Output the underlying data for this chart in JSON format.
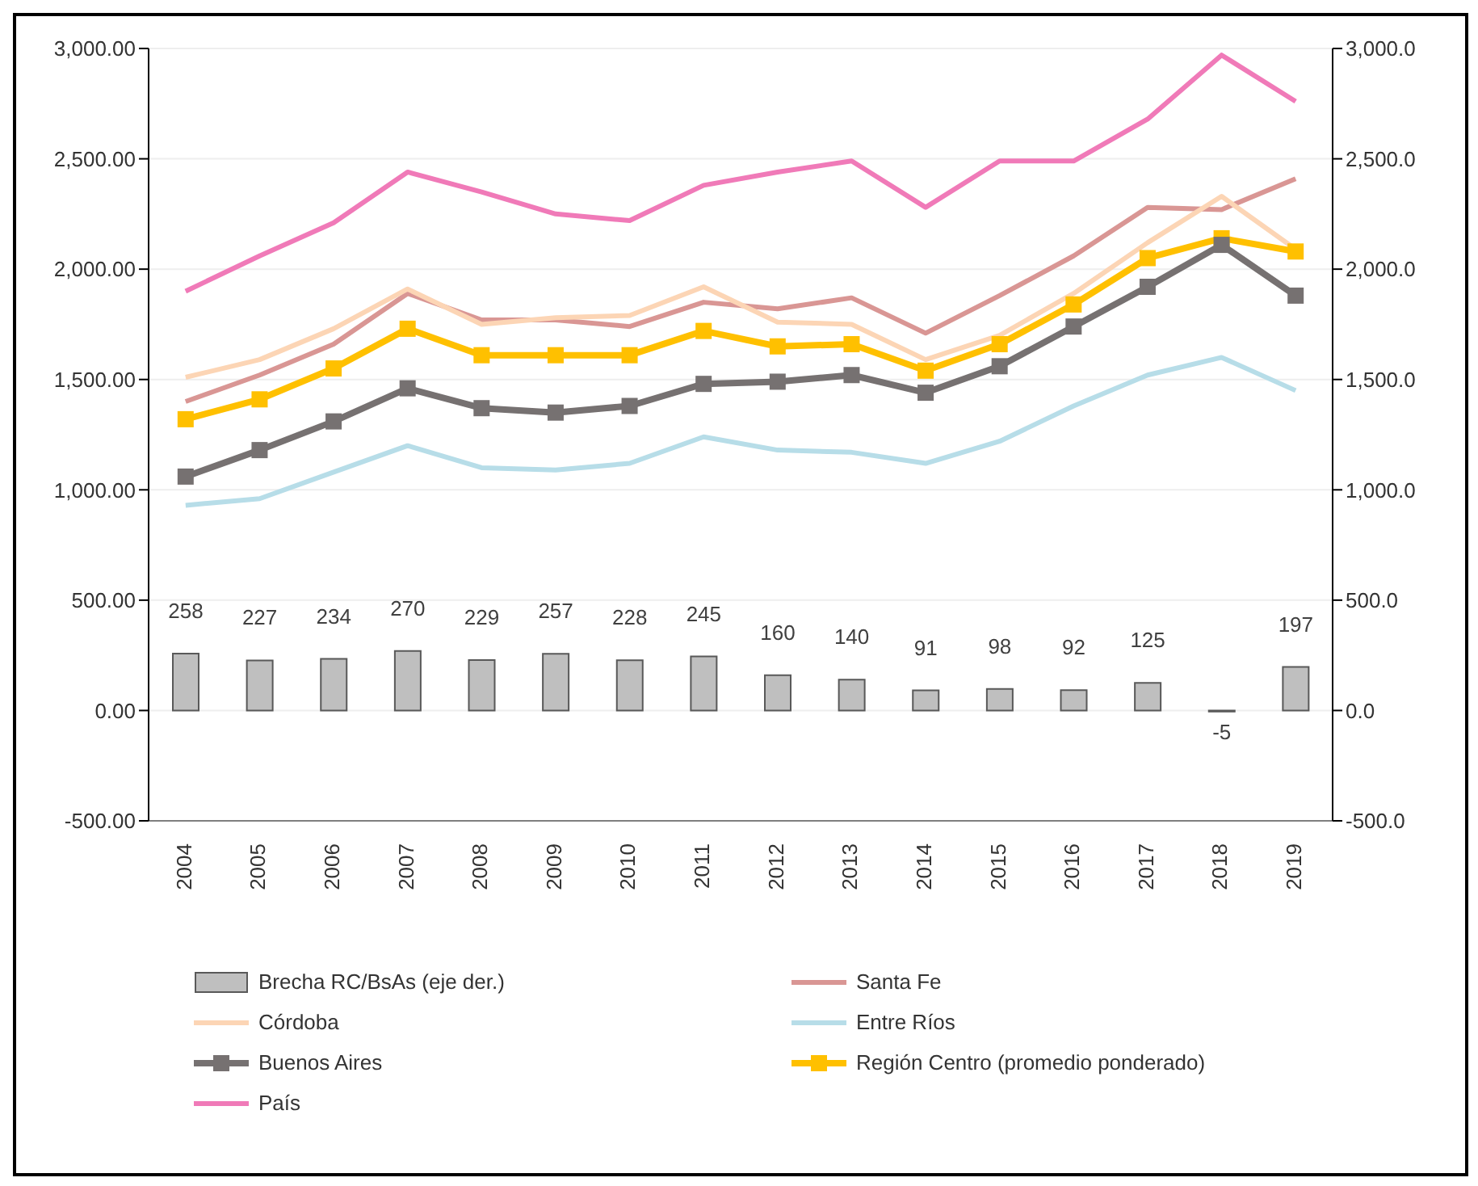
{
  "chart_data": {
    "type": "line",
    "categories": [
      "2004",
      "2005",
      "2006",
      "2007",
      "2008",
      "2009",
      "2010",
      "2011",
      "2012",
      "2013",
      "2014",
      "2015",
      "2016",
      "2017",
      "2018",
      "2019"
    ],
    "series": [
      {
        "name": "Brecha RC/BsAs (eje der.)",
        "type": "bar",
        "axis": "y2",
        "color": "#bfbfbf",
        "data_labels": true,
        "values": [
          258,
          227,
          234,
          270,
          229,
          257,
          228,
          245,
          160,
          140,
          91,
          98,
          92,
          125,
          -5,
          197
        ]
      },
      {
        "name": "Santa Fe",
        "color": "#d99694",
        "values": [
          1400,
          1520,
          1660,
          1890,
          1770,
          1770,
          1740,
          1850,
          1820,
          1870,
          1710,
          1880,
          2060,
          2280,
          2270,
          2410
        ]
      },
      {
        "name": "Córdoba",
        "color": "#fcd5b5",
        "values": [
          1510,
          1590,
          1730,
          1910,
          1750,
          1780,
          1790,
          1920,
          1760,
          1750,
          1590,
          1700,
          1890,
          2120,
          2330,
          2090
        ]
      },
      {
        "name": "Entre Ríos",
        "color": "#b7dde8",
        "values": [
          930,
          960,
          1080,
          1200,
          1100,
          1090,
          1120,
          1240,
          1180,
          1170,
          1120,
          1220,
          1380,
          1520,
          1600,
          1450
        ]
      },
      {
        "name": "Buenos Aires",
        "color": "#767171",
        "marker": "square",
        "values": [
          1060,
          1180,
          1310,
          1460,
          1370,
          1350,
          1380,
          1480,
          1490,
          1520,
          1440,
          1560,
          1740,
          1920,
          2110,
          1880
        ]
      },
      {
        "name": "Región Centro (promedio ponderado)",
        "color": "#ffc000",
        "marker": "square",
        "values": [
          1320,
          1410,
          1550,
          1730,
          1610,
          1610,
          1610,
          1720,
          1650,
          1660,
          1540,
          1660,
          1840,
          2050,
          2140,
          2080
        ]
      },
      {
        "name": "País",
        "color": "#f07ab8",
        "values": [
          1900,
          2060,
          2210,
          2440,
          2350,
          2250,
          2220,
          2380,
          2440,
          2490,
          2280,
          2490,
          2490,
          2680,
          2970,
          2760
        ]
      }
    ],
    "ylim": [
      -500,
      3000
    ],
    "yticks": [
      {
        "value": -500,
        "label": "-500.00"
      },
      {
        "value": 0,
        "label": "0.00"
      },
      {
        "value": 500,
        "label": "500.00"
      },
      {
        "value": 1000,
        "label": "1,000.00"
      },
      {
        "value": 1500,
        "label": "1,500.00"
      },
      {
        "value": 2000,
        "label": "2,000.00"
      },
      {
        "value": 2500,
        "label": "2,500.00"
      },
      {
        "value": 3000,
        "label": "3,000.00"
      }
    ],
    "y2lim": [
      -500,
      3000
    ],
    "y2ticks": [
      {
        "value": -500,
        "label": "-500.0"
      },
      {
        "value": 0,
        "label": "0.0"
      },
      {
        "value": 500,
        "label": "500.0"
      },
      {
        "value": 1000,
        "label": "1,000.0"
      },
      {
        "value": 1500,
        "label": "1,500.0"
      },
      {
        "value": 2000,
        "label": "2,000.0"
      },
      {
        "value": 2500,
        "label": "2,500.0"
      },
      {
        "value": 3000,
        "label": "3,000.0"
      }
    ],
    "grid": "y",
    "line_style": "solid",
    "legend": "bottom"
  }
}
